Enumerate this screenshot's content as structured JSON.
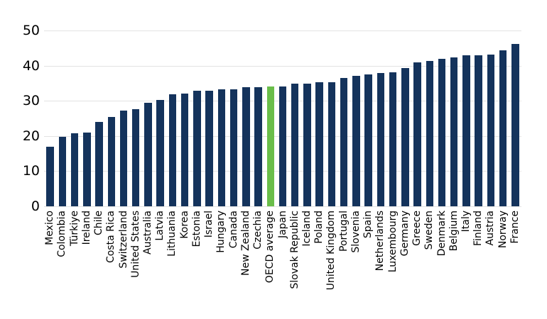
{
  "chart_data": {
    "type": "bar",
    "title": "",
    "xlabel": "",
    "ylabel": "",
    "ylim": [
      0,
      50
    ],
    "yticks": [
      0,
      10,
      20,
      30,
      40,
      50
    ],
    "grid": "horizontal gridlines only",
    "legend_position": "none",
    "bar_color": "#14335c",
    "highlight_color": "#6abe4a",
    "gridline_color": "#e3e3e3",
    "text_color": "#000000",
    "background_color": "#ffffff",
    "highlight_category": "OECD average",
    "categories": [
      "Mexico",
      "Colombia",
      "Türkiye",
      "Ireland",
      "Chile",
      "Costa Rica",
      "Switzerland",
      "United States",
      "Australia",
      "Latvia",
      "Lithuania",
      "Korea",
      "Estonia",
      "Israel",
      "Hungary",
      "Canada",
      "New Zealand",
      "Czechia",
      "OECD average",
      "Japan",
      "Slovak Republic",
      "Iceland",
      "Poland",
      "United Kingdom",
      "Portugal",
      "Slovenia",
      "Spain",
      "Netherlands",
      "Luxembourg",
      "Germany",
      "Greece",
      "Sweden",
      "Denmark",
      "Belgium",
      "Italy",
      "Finland",
      "Austria",
      "Norway",
      "France"
    ],
    "values": [
      16.9,
      19.7,
      20.8,
      20.9,
      23.9,
      25.5,
      27.2,
      27.7,
      29.5,
      30.2,
      31.9,
      32.0,
      32.8,
      32.9,
      33.2,
      33.2,
      33.8,
      33.9,
      34.0,
      34.1,
      34.8,
      34.9,
      35.2,
      35.3,
      36.4,
      37.0,
      37.5,
      38.0,
      38.2,
      39.3,
      41.0,
      41.3,
      41.9,
      42.4,
      42.9,
      43.0,
      43.1,
      44.3,
      46.1
    ]
  }
}
